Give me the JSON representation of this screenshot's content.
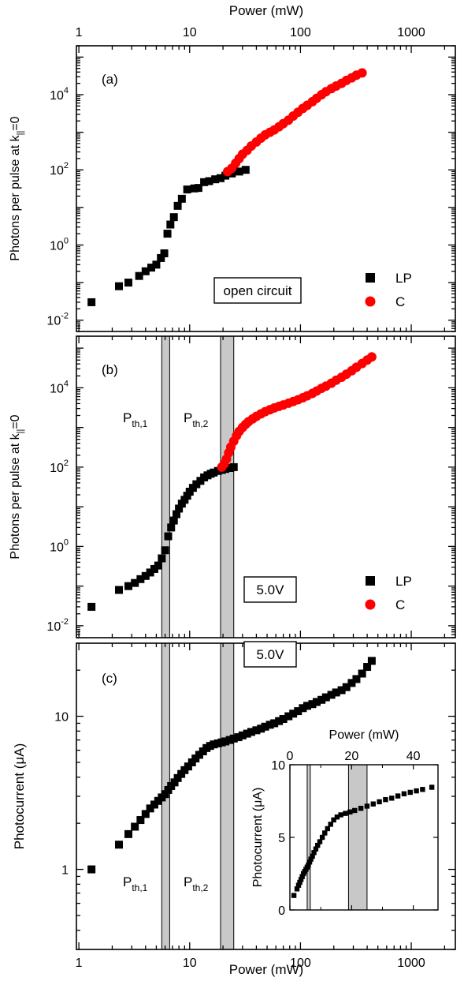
{
  "figure": {
    "top_axis_label": "Power (mW)",
    "bottom_axis_label": "Power (mW)",
    "x_ticks": [
      "1",
      "10",
      "100",
      "1000"
    ]
  },
  "colors": {
    "lp": "#000000",
    "c": "#ff0000",
    "band": "#c8c8c8"
  },
  "chart_data": [
    {
      "id": "a",
      "type": "scatter",
      "panel_label": "(a)",
      "xlabel": "Power (mW)",
      "ylabel_main": "Photons per pulse at k",
      "ylabel_sub": "||",
      "ylabel_end": "=0",
      "x_scale": "log",
      "y_scale": "log",
      "xlim": [
        0.95,
        2500
      ],
      "ylim": [
        0.005,
        200000
      ],
      "y_ticks": [
        {
          "base": "10",
          "exp": "4",
          "value": 10000
        },
        {
          "base": "10",
          "exp": "2",
          "value": 100
        },
        {
          "base": "10",
          "exp": "0",
          "value": 1
        },
        {
          "base": "10",
          "exp": "-2",
          "value": 0.01
        }
      ],
      "legend_placement": "bottom-right",
      "annotation": "open circuit",
      "series": [
        {
          "name": "LP",
          "marker": "square",
          "x": [
            1.3,
            2.3,
            2.8,
            3.5,
            4.0,
            4.5,
            5.0,
            5.5,
            5.9,
            6.3,
            6.7,
            7.2,
            7.8,
            8.5,
            9.5,
            11,
            12,
            13.5,
            15,
            17,
            19,
            21,
            24,
            28,
            32
          ],
          "y": [
            0.03,
            0.08,
            0.1,
            0.15,
            0.2,
            0.25,
            0.3,
            0.45,
            0.6,
            2.0,
            3.5,
            5.5,
            11,
            17,
            30,
            32,
            33,
            47,
            50,
            56,
            60,
            70,
            80,
            90,
            100
          ]
        },
        {
          "name": "C",
          "marker": "circle",
          "x": [
            22,
            24,
            26,
            28,
            30,
            33,
            36,
            40,
            44,
            48,
            53,
            58,
            64,
            70,
            78,
            86,
            95,
            105,
            115,
            128,
            140,
            155,
            170,
            190,
            210,
            235,
            260,
            290,
            320,
            360
          ],
          "y": [
            90,
            110,
            150,
            200,
            260,
            330,
            430,
            550,
            700,
            850,
            1000,
            1150,
            1400,
            1700,
            2100,
            2700,
            3400,
            4300,
            5200,
            6500,
            8000,
            10000,
            12000,
            14500,
            17000,
            20000,
            24000,
            28000,
            33000,
            38000
          ]
        }
      ]
    },
    {
      "id": "b",
      "type": "scatter",
      "panel_label": "(b)",
      "xlabel": "Power (mW)",
      "ylabel_main": "Photons per pulse at k",
      "ylabel_sub": "||",
      "ylabel_end": "=0",
      "x_scale": "log",
      "y_scale": "log",
      "xlim": [
        0.95,
        2500
      ],
      "ylim": [
        0.005,
        200000
      ],
      "y_ticks": [
        {
          "base": "10",
          "exp": "4",
          "value": 10000
        },
        {
          "base": "10",
          "exp": "2",
          "value": 100
        },
        {
          "base": "10",
          "exp": "0",
          "value": 1
        },
        {
          "base": "10",
          "exp": "-2",
          "value": 0.01
        }
      ],
      "bands": [
        [
          5.6,
          6.6
        ],
        [
          19,
          25
        ]
      ],
      "threshold_labels": [
        {
          "main": "P",
          "sub": "th,1"
        },
        {
          "main": "P",
          "sub": "th,2"
        }
      ],
      "legend_placement": "bottom-right",
      "annotation": "5.0V",
      "series": [
        {
          "name": "LP",
          "marker": "square",
          "x": [
            1.3,
            2.3,
            2.8,
            3.2,
            3.6,
            4.0,
            4.4,
            4.8,
            5.2,
            5.6,
            6.0,
            6.4,
            6.8,
            7.2,
            7.6,
            8.0,
            8.5,
            9.0,
            9.5,
            10,
            10.7,
            11.5,
            12.5,
            13.5,
            14.5,
            15.5,
            16.5,
            18,
            19.5,
            21,
            23,
            25
          ],
          "y": [
            0.03,
            0.08,
            0.1,
            0.12,
            0.15,
            0.18,
            0.22,
            0.27,
            0.33,
            0.5,
            0.8,
            1.8,
            3.0,
            4.5,
            6.5,
            9.0,
            12,
            15,
            19,
            24,
            30,
            37,
            45,
            55,
            62,
            68,
            73,
            80,
            85,
            90,
            95,
            100
          ]
        },
        {
          "name": "C",
          "marker": "circle",
          "x": [
            19.5,
            20.5,
            21.5,
            22.5,
            23.5,
            25,
            26.5,
            28,
            30,
            32,
            34,
            37,
            40,
            44,
            48,
            53,
            58,
            64,
            70,
            78,
            86,
            95,
            105,
            115,
            128,
            140,
            155,
            170,
            190,
            210,
            235,
            260,
            290,
            320,
            360,
            400,
            440
          ],
          "y": [
            100,
            120,
            160,
            230,
            320,
            450,
            620,
            800,
            1000,
            1200,
            1400,
            1650,
            1900,
            2200,
            2500,
            2800,
            3100,
            3400,
            3700,
            4100,
            4500,
            5000,
            5600,
            6300,
            7200,
            8300,
            9700,
            11000,
            13000,
            15500,
            18500,
            22000,
            27000,
            33000,
            41000,
            50000,
            60000
          ]
        }
      ]
    },
    {
      "id": "c",
      "type": "scatter",
      "panel_label": "(c)",
      "xlabel": "Power (mW)",
      "ylabel": "Photocurrent (μA)",
      "x_scale": "log",
      "y_scale": "log",
      "xlim": [
        0.95,
        2500
      ],
      "ylim": [
        0.3,
        30
      ],
      "y_ticks": [
        {
          "label": "10",
          "value": 10
        },
        {
          "label": "1",
          "value": 1
        }
      ],
      "bands": [
        [
          5.6,
          6.6
        ],
        [
          19,
          25
        ]
      ],
      "threshold_labels": [
        {
          "main": "P",
          "sub": "th,1"
        },
        {
          "main": "P",
          "sub": "th,2"
        }
      ],
      "annotation": "5.0V",
      "series": [
        {
          "name": "",
          "marker": "square",
          "x": [
            1.3,
            2.3,
            2.8,
            3.2,
            3.6,
            4.0,
            4.4,
            4.8,
            5.2,
            5.6,
            6.0,
            6.4,
            6.8,
            7.3,
            7.8,
            8.4,
            9.0,
            9.7,
            10.5,
            11.3,
            12.2,
            13.2,
            14.2,
            15.3,
            16.5,
            18,
            19.5,
            21,
            23,
            25,
            27.5,
            30,
            33,
            36,
            40,
            44,
            48,
            53,
            58,
            64,
            70,
            78,
            86,
            95,
            105,
            115,
            128,
            140,
            155,
            170,
            190,
            210,
            235,
            260,
            290,
            320,
            360,
            400,
            440
          ],
          "y": [
            1.0,
            1.45,
            1.7,
            1.9,
            2.1,
            2.3,
            2.5,
            2.65,
            2.8,
            2.95,
            3.1,
            3.3,
            3.5,
            3.7,
            3.95,
            4.2,
            4.45,
            4.7,
            5.0,
            5.3,
            5.6,
            5.9,
            6.2,
            6.4,
            6.55,
            6.65,
            6.75,
            6.85,
            7.0,
            7.15,
            7.3,
            7.5,
            7.7,
            7.9,
            8.1,
            8.3,
            8.55,
            8.8,
            9.0,
            9.3,
            9.6,
            10.0,
            10.4,
            10.8,
            11.3,
            11.7,
            12.0,
            12.4,
            12.8,
            13.3,
            13.8,
            14.3,
            14.8,
            15.5,
            16.5,
            17.5,
            19.0,
            21.0,
            23.0
          ]
        }
      ],
      "inset": {
        "type": "scatter",
        "xlabel": "Power (mW)",
        "ylabel": "Photocurrent (μA)",
        "x_scale": "linear",
        "y_scale": "linear",
        "xlim": [
          0,
          48
        ],
        "ylim": [
          0,
          10
        ],
        "x_ticks": [
          0,
          20,
          40
        ],
        "y_ticks": [
          0,
          5,
          10
        ],
        "bands": [
          [
            5.6,
            6.6
          ],
          [
            19,
            25
          ]
        ],
        "x": [
          1.3,
          2.3,
          2.8,
          3.2,
          3.6,
          4.0,
          4.4,
          4.8,
          5.2,
          5.6,
          6.0,
          6.4,
          6.8,
          7.3,
          7.8,
          8.4,
          9.0,
          9.7,
          10.5,
          11.3,
          12.2,
          13.2,
          14.2,
          15.3,
          16.5,
          18,
          19.5,
          21,
          23,
          25,
          27,
          29,
          31,
          33,
          35,
          37,
          39,
          41,
          43,
          46
        ],
        "y": [
          1.0,
          1.45,
          1.7,
          1.9,
          2.1,
          2.3,
          2.5,
          2.65,
          2.8,
          2.95,
          3.1,
          3.3,
          3.5,
          3.7,
          3.95,
          4.2,
          4.45,
          4.7,
          5.0,
          5.3,
          5.6,
          5.9,
          6.2,
          6.4,
          6.55,
          6.65,
          6.75,
          6.85,
          7.0,
          7.15,
          7.3,
          7.45,
          7.6,
          7.7,
          7.85,
          8.0,
          8.1,
          8.2,
          8.3,
          8.45
        ]
      }
    }
  ]
}
